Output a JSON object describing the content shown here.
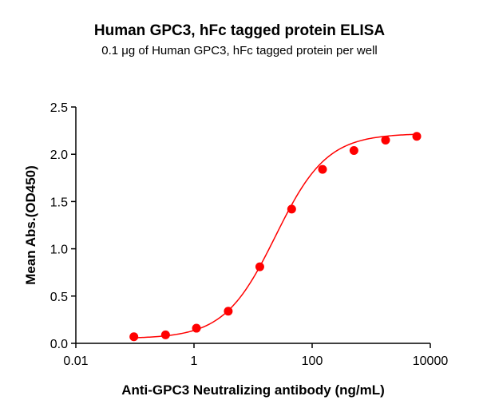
{
  "chart_data": {
    "type": "scatter",
    "title": "Human GPC3, hFc tagged protein ELISA",
    "subtitle": "0.1 μg of Human GPC3, hFc tagged protein per well",
    "xlabel": "Anti-GPC3 Neutralizing antibody (ng/mL)",
    "ylabel": "Mean Abs.(OD450)",
    "xscale": "log",
    "xlim": [
      0.01,
      10000
    ],
    "ylim": [
      0,
      2.5
    ],
    "xticks": [
      "0.01",
      "1",
      "100",
      "10000"
    ],
    "yticks": [
      "0.0",
      "0.5",
      "1.0",
      "1.5",
      "2.0",
      "2.5"
    ],
    "grid": false,
    "fit_curve": "sigmoidal",
    "color": "#ff0000",
    "series": [
      {
        "x": [
          0.096,
          0.33,
          1.1,
          3.8,
          13,
          45,
          150,
          510,
          1750,
          5900
        ],
        "y": [
          0.07,
          0.09,
          0.16,
          0.34,
          0.81,
          1.42,
          1.84,
          2.04,
          2.15,
          2.19
        ]
      }
    ]
  }
}
